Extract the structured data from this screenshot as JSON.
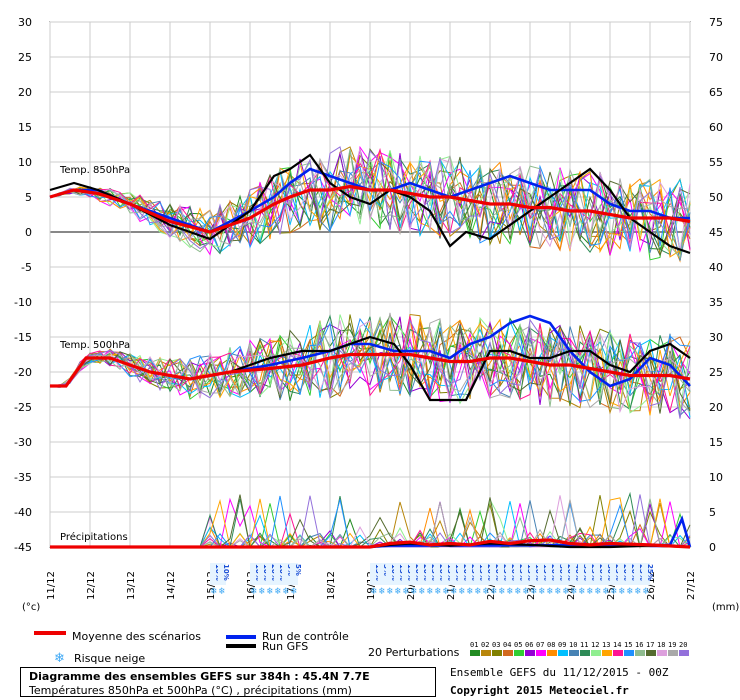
{
  "chart_data": {
    "type": "line",
    "title": "Diagramme des ensembles GEFS sur 384h : 45.4N 7.7E",
    "subtitle": "Températures 850hPa et 500hPa (°C) , précipitations (mm)",
    "y_left_label": "(°c)",
    "y_right_label": "(mm)",
    "y_left_ticks": [
      "30",
      "25",
      "20",
      "15",
      "10",
      "5",
      "0",
      "-5",
      "-10",
      "-15",
      "-20",
      "-25",
      "-30",
      "-35",
      "-40",
      "-45"
    ],
    "y_right_ticks": [
      "75",
      "70",
      "65",
      "60",
      "55",
      "50",
      "45",
      "40",
      "35",
      "30",
      "25",
      "20",
      "15",
      "10",
      "5",
      "0"
    ],
    "ylim_left": [
      -45,
      30
    ],
    "x_ticks": [
      "11/12",
      "12/12",
      "13/12",
      "14/12",
      "15/12",
      "16/12",
      "17/12",
      "18/12",
      "19/12",
      "20/12",
      "21/12",
      "22/12",
      "23/12",
      "24/12",
      "25/12",
      "26/12",
      "27/12"
    ],
    "xlim_days": [
      0,
      16
    ],
    "grid": true,
    "annotations": [
      "Temp. 850hPa",
      "Temp. 500hPa",
      "Précipitations"
    ],
    "snow_risk": [
      {
        "day": 4.1,
        "pct": "10%"
      },
      {
        "day": 4.3,
        "pct": "10%"
      },
      {
        "day": 5.1,
        "pct": "10%"
      },
      {
        "day": 5.3,
        "pct": "10%"
      },
      {
        "day": 5.5,
        "pct": "20%"
      },
      {
        "day": 5.7,
        "pct": "10%"
      },
      {
        "day": 5.9,
        "pct": "5%"
      },
      {
        "day": 6.1,
        "pct": "5%"
      },
      {
        "day": 8.1,
        "pct": "15%"
      },
      {
        "day": 8.3,
        "pct": "5%"
      },
      {
        "day": 8.5,
        "pct": "10%"
      },
      {
        "day": 8.7,
        "pct": "15%"
      },
      {
        "day": 8.9,
        "pct": "15%"
      },
      {
        "day": 9.1,
        "pct": "20%"
      },
      {
        "day": 9.3,
        "pct": "20%"
      },
      {
        "day": 9.5,
        "pct": "25%"
      },
      {
        "day": 9.7,
        "pct": "20%"
      },
      {
        "day": 9.9,
        "pct": "15%"
      },
      {
        "day": 10.1,
        "pct": "15%"
      },
      {
        "day": 10.3,
        "pct": "20%"
      },
      {
        "day": 10.5,
        "pct": "25%"
      },
      {
        "day": 10.7,
        "pct": "15%"
      },
      {
        "day": 10.9,
        "pct": "20%"
      },
      {
        "day": 11.1,
        "pct": "20%"
      },
      {
        "day": 11.3,
        "pct": "25%"
      },
      {
        "day": 11.5,
        "pct": "20%"
      },
      {
        "day": 11.7,
        "pct": "25%"
      },
      {
        "day": 11.9,
        "pct": "15%"
      },
      {
        "day": 12.1,
        "pct": "10%"
      },
      {
        "day": 12.3,
        "pct": "15%"
      },
      {
        "day": 12.5,
        "pct": "20%"
      },
      {
        "day": 12.7,
        "pct": "30%"
      },
      {
        "day": 12.9,
        "pct": "20%"
      },
      {
        "day": 13.1,
        "pct": "40%"
      },
      {
        "day": 13.3,
        "pct": "35%"
      },
      {
        "day": 13.5,
        "pct": "25%"
      },
      {
        "day": 13.7,
        "pct": "20%"
      },
      {
        "day": 13.9,
        "pct": "30%"
      },
      {
        "day": 14.1,
        "pct": "25%"
      },
      {
        "day": 14.3,
        "pct": "20%"
      },
      {
        "day": 14.5,
        "pct": "20%"
      },
      {
        "day": 14.7,
        "pct": "25%"
      },
      {
        "day": 14.9,
        "pct": "25%"
      }
    ],
    "series": [
      {
        "name": "Run GFS",
        "color": "#000000",
        "width": 2.2,
        "t850": [
          [
            0,
            6
          ],
          [
            0.6,
            7
          ],
          [
            1.2,
            6
          ],
          [
            2,
            4
          ],
          [
            3,
            1
          ],
          [
            4,
            -1
          ],
          [
            5,
            3
          ],
          [
            5.6,
            8
          ],
          [
            6,
            9
          ],
          [
            6.5,
            11
          ],
          [
            7,
            7
          ],
          [
            7.5,
            5
          ],
          [
            8,
            4
          ],
          [
            8.5,
            6
          ],
          [
            9,
            5
          ],
          [
            9.5,
            3
          ],
          [
            10,
            -2
          ],
          [
            10.4,
            0
          ],
          [
            11,
            -1
          ],
          [
            11.5,
            1
          ],
          [
            12,
            3
          ],
          [
            12.5,
            5
          ],
          [
            13,
            7
          ],
          [
            13.5,
            9
          ],
          [
            14,
            6
          ],
          [
            14.5,
            2
          ],
          [
            15,
            0
          ],
          [
            15.5,
            -2
          ],
          [
            16,
            -3
          ]
        ],
        "t500": [
          [
            0,
            -22
          ],
          [
            0.4,
            -22
          ],
          [
            0.9,
            -18
          ],
          [
            1.5,
            -18
          ],
          [
            2.5,
            -20
          ],
          [
            3.5,
            -21
          ],
          [
            4.5,
            -20
          ],
          [
            5.5,
            -18
          ],
          [
            6.3,
            -17
          ],
          [
            7,
            -17
          ],
          [
            7.5,
            -16
          ],
          [
            8,
            -15
          ],
          [
            8.6,
            -16
          ],
          [
            9,
            -19
          ],
          [
            9.5,
            -24
          ],
          [
            10,
            -24
          ],
          [
            10.4,
            -24
          ],
          [
            11,
            -17
          ],
          [
            11.5,
            -17
          ],
          [
            12,
            -18
          ],
          [
            12.5,
            -18
          ],
          [
            13,
            -17
          ],
          [
            13.5,
            -17
          ],
          [
            14,
            -19
          ],
          [
            14.5,
            -20
          ],
          [
            15,
            -17
          ],
          [
            15.5,
            -16
          ],
          [
            16,
            -18
          ]
        ],
        "precip": [
          [
            0,
            0
          ],
          [
            5,
            0
          ],
          [
            6,
            0
          ],
          [
            8,
            0
          ],
          [
            8.5,
            0.3
          ],
          [
            9,
            0.5
          ],
          [
            10,
            0.2
          ],
          [
            11,
            0.5
          ],
          [
            12,
            0.3
          ],
          [
            13,
            0
          ],
          [
            14,
            0
          ],
          [
            15,
            0.2
          ],
          [
            16,
            0
          ]
        ]
      },
      {
        "name": "Run de contrôle",
        "color": "#0022ee",
        "width": 2.6,
        "t850": [
          [
            0,
            5
          ],
          [
            0.6,
            6
          ],
          [
            1.2,
            6
          ],
          [
            2,
            4
          ],
          [
            3,
            2
          ],
          [
            4,
            0
          ],
          [
            5,
            3
          ],
          [
            5.6,
            5
          ],
          [
            6,
            7
          ],
          [
            6.5,
            9
          ],
          [
            7,
            8
          ],
          [
            7.5,
            7
          ],
          [
            8,
            6
          ],
          [
            8.5,
            6
          ],
          [
            9,
            7
          ],
          [
            9.5,
            6
          ],
          [
            10,
            5
          ],
          [
            10.5,
            6
          ],
          [
            11,
            7
          ],
          [
            11.5,
            8
          ],
          [
            12,
            7
          ],
          [
            12.5,
            6
          ],
          [
            13,
            6
          ],
          [
            13.5,
            6
          ],
          [
            14,
            4
          ],
          [
            14.5,
            3
          ],
          [
            15,
            3
          ],
          [
            15.5,
            2
          ],
          [
            16,
            2
          ]
        ],
        "t500": [
          [
            0,
            -22
          ],
          [
            0.4,
            -22
          ],
          [
            0.9,
            -18
          ],
          [
            1.5,
            -18
          ],
          [
            2.5,
            -20
          ],
          [
            3.5,
            -21
          ],
          [
            4.5,
            -20
          ],
          [
            5.5,
            -19
          ],
          [
            6.3,
            -18
          ],
          [
            7,
            -17
          ],
          [
            7.5,
            -16
          ],
          [
            8,
            -16
          ],
          [
            8.6,
            -17
          ],
          [
            9,
            -17
          ],
          [
            9.5,
            -17
          ],
          [
            10,
            -18
          ],
          [
            10.5,
            -16
          ],
          [
            11,
            -15
          ],
          [
            11.5,
            -13
          ],
          [
            12,
            -12
          ],
          [
            12.5,
            -13
          ],
          [
            13,
            -17
          ],
          [
            13.5,
            -20
          ],
          [
            14,
            -22
          ],
          [
            14.5,
            -21
          ],
          [
            15,
            -18
          ],
          [
            15.5,
            -19
          ],
          [
            16,
            -22
          ]
        ],
        "precip": [
          [
            0,
            0
          ],
          [
            8,
            0
          ],
          [
            8.5,
            0.2
          ],
          [
            9,
            0.2
          ],
          [
            15.5,
            0.3
          ],
          [
            15.8,
            4
          ],
          [
            16,
            0
          ]
        ]
      },
      {
        "name": "Moyenne des scénarios",
        "color": "#ee0000",
        "width": 3.2,
        "t850": [
          [
            0,
            5
          ],
          [
            0.6,
            6
          ],
          [
            1.2,
            5.5
          ],
          [
            2,
            4
          ],
          [
            3,
            1.5
          ],
          [
            4,
            0
          ],
          [
            5,
            2
          ],
          [
            5.6,
            4
          ],
          [
            6,
            5
          ],
          [
            6.5,
            6
          ],
          [
            7,
            6
          ],
          [
            7.5,
            6.5
          ],
          [
            8,
            6
          ],
          [
            8.5,
            6
          ],
          [
            9,
            5.5
          ],
          [
            9.5,
            5
          ],
          [
            10,
            5
          ],
          [
            10.5,
            4.5
          ],
          [
            11,
            4
          ],
          [
            11.5,
            4
          ],
          [
            12,
            3.5
          ],
          [
            12.5,
            3.5
          ],
          [
            13,
            3
          ],
          [
            13.5,
            3
          ],
          [
            14,
            2.5
          ],
          [
            14.5,
            2
          ],
          [
            15,
            2
          ],
          [
            15.5,
            2
          ],
          [
            16,
            1.5
          ]
        ],
        "t500": [
          [
            0,
            -22
          ],
          [
            0.4,
            -22
          ],
          [
            0.9,
            -18
          ],
          [
            1.5,
            -18
          ],
          [
            2.5,
            -20
          ],
          [
            3.5,
            -21
          ],
          [
            4.5,
            -20
          ],
          [
            5.5,
            -19.5
          ],
          [
            6.3,
            -19
          ],
          [
            7,
            -18
          ],
          [
            7.5,
            -17.5
          ],
          [
            8,
            -17.5
          ],
          [
            8.6,
            -17.5
          ],
          [
            9,
            -17.5
          ],
          [
            9.5,
            -18
          ],
          [
            10,
            -18.5
          ],
          [
            10.5,
            -18.5
          ],
          [
            11,
            -18
          ],
          [
            11.5,
            -18
          ],
          [
            12,
            -18.5
          ],
          [
            12.5,
            -19
          ],
          [
            13,
            -19
          ],
          [
            13.5,
            -19.5
          ],
          [
            14,
            -20
          ],
          [
            14.5,
            -20.5
          ],
          [
            15,
            -20.5
          ],
          [
            15.5,
            -20.5
          ],
          [
            16,
            -21
          ]
        ],
        "precip": [
          [
            0,
            0
          ],
          [
            5,
            0
          ],
          [
            8,
            0
          ],
          [
            8.5,
            0.5
          ],
          [
            9,
            0.7
          ],
          [
            9.5,
            0.3
          ],
          [
            10,
            0.5
          ],
          [
            10.5,
            0.3
          ],
          [
            11,
            0.8
          ],
          [
            11.5,
            0.5
          ],
          [
            12,
            0.9
          ],
          [
            12.5,
            1
          ],
          [
            13,
            0.5
          ],
          [
            13.5,
            0.3
          ],
          [
            14,
            0.5
          ],
          [
            15,
            0.3
          ],
          [
            16,
            0
          ]
        ]
      }
    ],
    "perturbation_colors": [
      "#228b22",
      "#b8860b",
      "#808000",
      "#d2691e",
      "#32cd32",
      "#9400d3",
      "#ff00ff",
      "#ff8c00",
      "#00bfff",
      "#4682b4",
      "#2e8b57",
      "#90ee90",
      "#ffa500",
      "#ff1493",
      "#1e90ff",
      "#8fbc8f",
      "#556b2f",
      "#dda0dd",
      "#a9a9a9",
      "#9370db"
    ],
    "perturbation_labels": [
      "01",
      "02",
      "03",
      "04",
      "05",
      "06",
      "07",
      "08",
      "09",
      "10",
      "11",
      "12",
      "13",
      "14",
      "15",
      "16",
      "17",
      "18",
      "19",
      "20"
    ]
  },
  "legend": {
    "mean_label": "Moyenne des scénarios",
    "control_label": "Run de contrôle",
    "gfs_label": "Run GFS",
    "snow_label": "Risque neige",
    "perturbations_label": "20 Perturbations"
  },
  "footer": {
    "title": "Diagramme des ensembles GEFS sur 384h : 45.4N 7.7E",
    "subtitle": "Températures 850hPa et 500hPa (°C) , précipitations (mm)",
    "ensemble_label": "Ensemble GEFS du 11/12/2015 - 00Z",
    "copyright": "Copyright 2015 Meteociel.fr"
  }
}
